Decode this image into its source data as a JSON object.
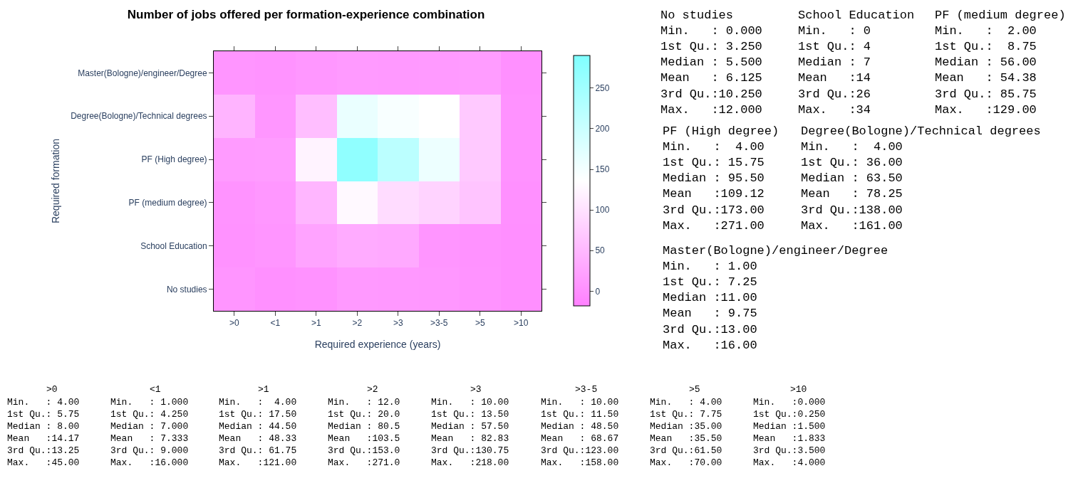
{
  "chart_data": {
    "type": "heatmap",
    "title": "Number of jobs offered per formation-experience combination",
    "xlabel": "Required experience (years)",
    "ylabel": "Required formation",
    "categories": [
      ">0",
      "<1",
      ">1",
      ">2",
      ">3",
      ">3-5",
      ">5",
      ">10"
    ],
    "y_categories": [
      "Master(Bologne)/engineer/Degree",
      "Degree(Bologne)/Technical degrees",
      "PF (High degree)",
      "PF (medium degree)",
      "School Education",
      "No studies"
    ],
    "cells": [
      [
        8,
        5,
        10,
        13,
        12,
        13,
        16,
        1
      ],
      [
        45,
        9,
        57,
        161,
        144,
        136,
        70,
        4
      ],
      [
        15,
        16,
        121,
        271,
        218,
        158,
        70,
        4
      ],
      [
        5,
        10,
        47,
        129,
        94,
        83,
        65,
        2
      ],
      [
        4,
        7,
        24,
        34,
        32,
        7,
        4,
        0
      ],
      [
        8,
        1,
        4,
        12,
        11,
        10,
        5,
        0
      ]
    ],
    "clim": [
      -18,
      290
    ],
    "cticks": [
      0,
      50,
      100,
      150,
      200,
      250
    ],
    "annotations": [
      "No studies\nMin.   : 0.000\n1st Qu.: 3.250\nMedian : 5.500\nMean   : 6.125\n3rd Qu.:10.250\nMax.   :12.000",
      "School Education\nMin.   : 0\n1st Qu.: 4\nMedian : 7\nMean   :14\n3rd Qu.:26\nMax.   :34",
      "PF (medium degree)\nMin.   :  2.00\n1st Qu.:  8.75\nMedian : 56.00\nMean   : 54.38\n3rd Qu.: 85.75\nMax.   :129.00",
      "PF (High degree)\nMin.   :  4.00\n1st Qu.: 15.75\nMedian : 95.50\nMean   :109.12\n3rd Qu.:173.00\nMax.   :271.00",
      "Degree(Bologne)/Technical degrees\nMin.   :  4.00\n1st Qu.: 36.00\nMedian : 63.50\nMean   : 78.25\n3rd Qu.:138.00\nMax.   :161.00",
      "Master(Bologne)/engineer/Degree\nMin.   : 1.00\n1st Qu.: 7.25\nMedian :11.00\nMean   : 9.75\n3rd Qu.:13.00\nMax.   :16.00",
      ">0\nMin.   : 4.00\n1st Qu.: 5.75\nMedian : 8.00\nMean   :14.17\n3rd Qu.:13.25\nMax.   :45.00",
      "<1\nMin.   : 1.000\n1st Qu.: 4.250\nMedian : 7.000\nMean   : 7.333\n3rd Qu.: 9.000\nMax.   :16.000",
      ">1\nMin.   :  4.00\n1st Qu.: 17.50\nMedian : 44.50\nMean   : 48.33\n3rd Qu.: 61.75\nMax.   :121.00",
      ">2\nMin.   : 12.0\n1st Qu.: 20.0\nMedian : 80.5\nMean   :103.5\n3rd Qu.:153.0\nMax.   :271.0",
      ">3\nMin.   : 10.00\n1st Qu.: 13.50\nMedian : 57.50\nMean   : 82.83\n3rd Qu.:130.75\nMax.   :218.00",
      ">3-5\nMin.   : 10.00\n1st Qu.: 11.50\nMedian : 48.50\nMean   : 68.67\n3rd Qu.:123.00\nMax.   :158.00",
      ">5\nMin.   : 4.00\n1st Qu.: 7.75\nMedian :35.00\nMean   :35.50\n3rd Qu.:61.50\nMax.   :70.00",
      ">10\nMin.   :0.000\n1st Qu.:0.250\nMedian :1.500\nMean   :1.833\n3rd Qu.:3.500\nMax.   :4.000"
    ]
  }
}
